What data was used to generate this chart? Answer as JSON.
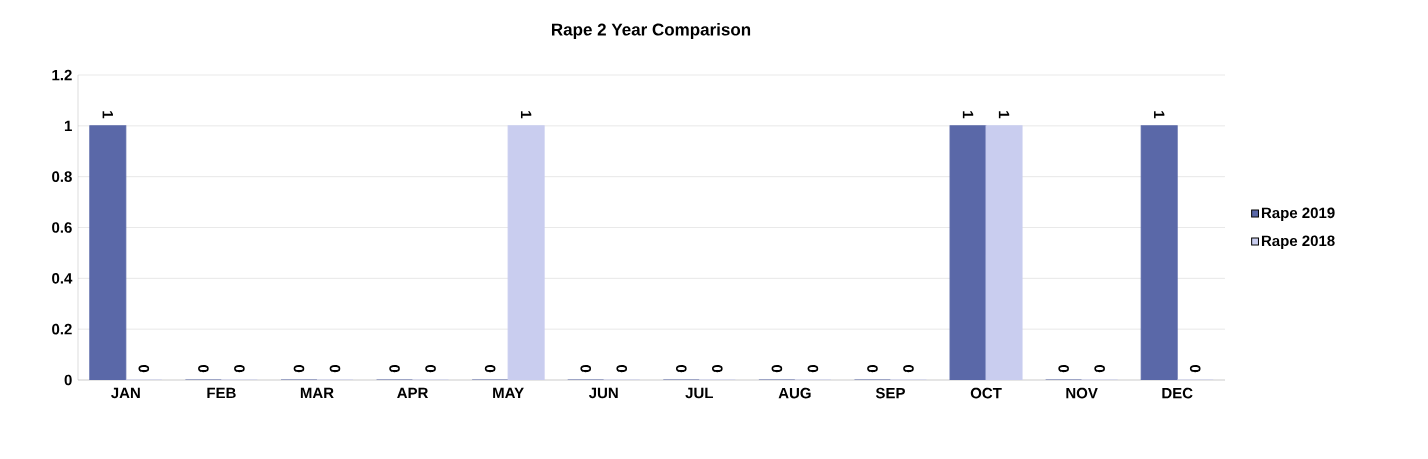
{
  "chart_data": {
    "type": "bar",
    "title": "Rape 2 Year Comparison",
    "categories": [
      "JAN",
      "FEB",
      "MAR",
      "APR",
      "MAY",
      "JUN",
      "JUL",
      "AUG",
      "SEP",
      "OCT",
      "NOV",
      "DEC"
    ],
    "series": [
      {
        "name": "Rape 2019",
        "color": "#5a68a8",
        "values": [
          1,
          0,
          0,
          0,
          0,
          0,
          0,
          0,
          0,
          1,
          0,
          1
        ]
      },
      {
        "name": "Rape 2018",
        "color": "#c9cdef",
        "values": [
          0,
          0,
          0,
          0,
          1,
          0,
          0,
          0,
          0,
          1,
          0,
          0
        ]
      }
    ],
    "ylim": [
      0,
      1.2
    ],
    "yticks": [
      0,
      0.2,
      0.4,
      0.6,
      0.8,
      1,
      1.2
    ],
    "grid": "y",
    "legend": "right",
    "data_labels": true
  }
}
